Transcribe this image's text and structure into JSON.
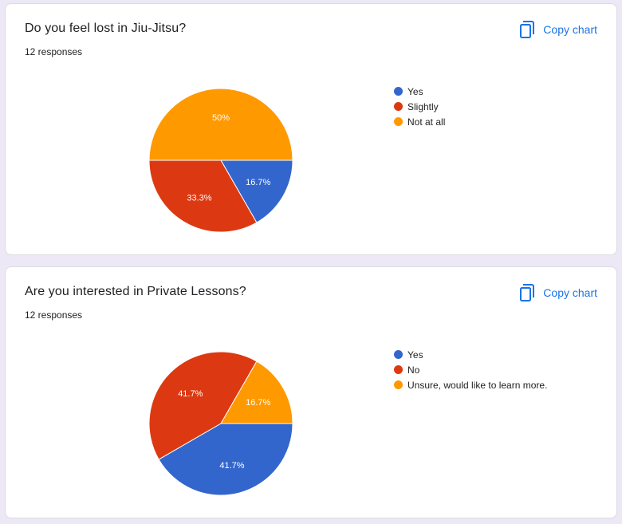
{
  "copy_label": "Copy chart",
  "icons": {
    "copy": "copy-icon"
  },
  "chart_data": [
    {
      "type": "pie",
      "title": "Do you feel lost in Jiu-Jitsu?",
      "subtitle": "12 responses",
      "legend_position": "right",
      "slices": [
        {
          "label": "Yes",
          "value": 16.7,
          "display": "16.7%",
          "color": "#3366cc"
        },
        {
          "label": "Slightly",
          "value": 33.3,
          "display": "33.3%",
          "color": "#dc3912"
        },
        {
          "label": "Not at all",
          "value": 50,
          "display": "50%",
          "color": "#ff9900"
        }
      ]
    },
    {
      "type": "pie",
      "title": "Are you interested in Private Lessons?",
      "subtitle": "12 responses",
      "legend_position": "right",
      "slices": [
        {
          "label": "Yes",
          "value": 41.7,
          "display": "41.7%",
          "color": "#3366cc"
        },
        {
          "label": "No",
          "value": 41.7,
          "display": "41.7%",
          "color": "#dc3912"
        },
        {
          "label": "Unsure, would like to learn more.",
          "value": 16.7,
          "display": "16.7%",
          "color": "#ff9900"
        }
      ]
    }
  ]
}
